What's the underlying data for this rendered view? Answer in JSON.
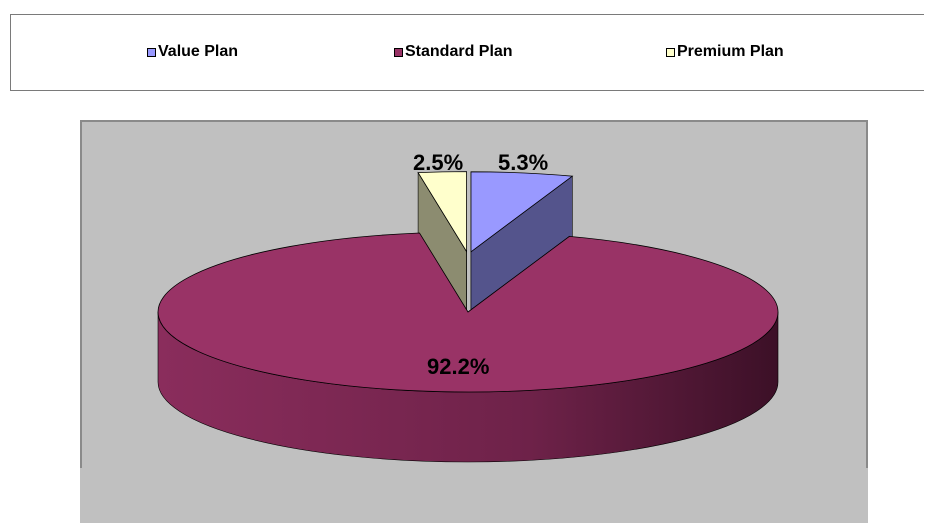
{
  "chart_data": {
    "type": "pie",
    "title": "",
    "categories": [
      "Value Plan",
      "Standard Plan",
      "Premium Plan"
    ],
    "values": [
      5.3,
      92.2,
      2.5
    ],
    "labels": [
      "5.3%",
      "92.2%",
      "2.5%"
    ],
    "colors": [
      "#9999ff",
      "#993366",
      "#ffffcc"
    ],
    "exploded": [
      "Value Plan",
      "Premium Plan"
    ],
    "legend_position": "top",
    "style": "3d-pie"
  },
  "legend": {
    "items": [
      {
        "label": "Value Plan",
        "color": "#9999ff"
      },
      {
        "label": "Standard Plan",
        "color": "#993366"
      },
      {
        "label": "Premium Plan",
        "color": "#ffffcc"
      }
    ]
  }
}
